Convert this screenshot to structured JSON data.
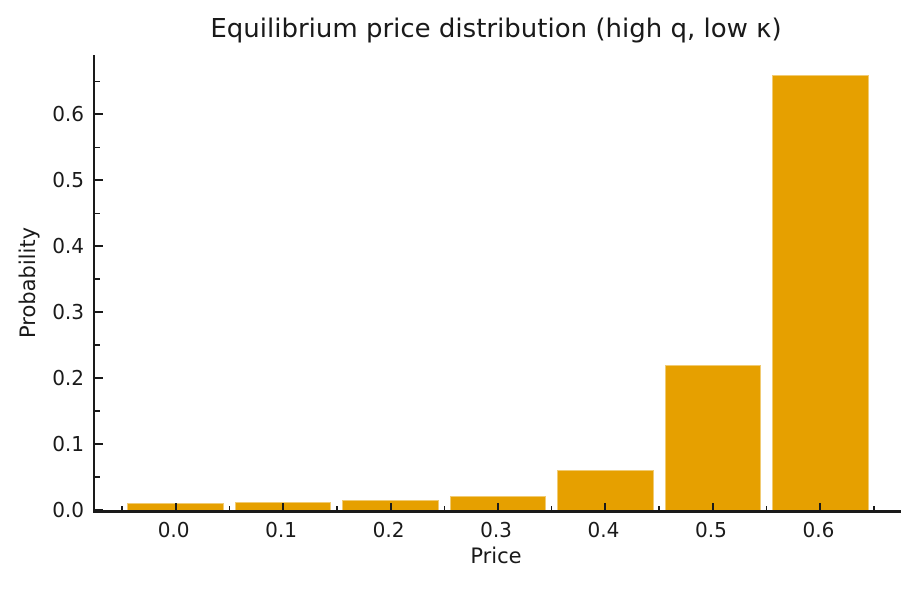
{
  "chart_data": {
    "type": "bar",
    "title": "Equilibrium price distribution (high q, low κ)",
    "xlabel": "Price",
    "ylabel": "Probability",
    "categories": [
      "0.0",
      "0.1",
      "0.2",
      "0.3",
      "0.4",
      "0.5",
      "0.6"
    ],
    "x": [
      0.0,
      0.1,
      0.2,
      0.3,
      0.4,
      0.5,
      0.6
    ],
    "values": [
      0.01,
      0.012,
      0.015,
      0.021,
      0.061,
      0.22,
      0.659
    ],
    "bar_width": 0.09,
    "xlim": [
      -0.075,
      0.675
    ],
    "ylim": [
      0,
      0.69
    ],
    "xtick_labels": [
      "0.0",
      "0.1",
      "0.2",
      "0.3",
      "0.4",
      "0.5",
      "0.6"
    ],
    "xticks": [
      0.0,
      0.1,
      0.2,
      0.3,
      0.4,
      0.5,
      0.6
    ],
    "ytick_labels": [
      "0.0",
      "0.1",
      "0.2",
      "0.3",
      "0.4",
      "0.5",
      "0.6"
    ],
    "yticks": [
      0.0,
      0.1,
      0.2,
      0.3,
      0.4,
      0.5,
      0.6
    ],
    "minor_tick_interval": 0.05,
    "grid": false,
    "legend": null,
    "colors": {
      "bar": "#E6A000",
      "bar_edge": "rgba(255,255,255,0.45)",
      "axis": "#1a1a1a",
      "text": "#1a1a1a",
      "background": "#ffffff"
    }
  }
}
